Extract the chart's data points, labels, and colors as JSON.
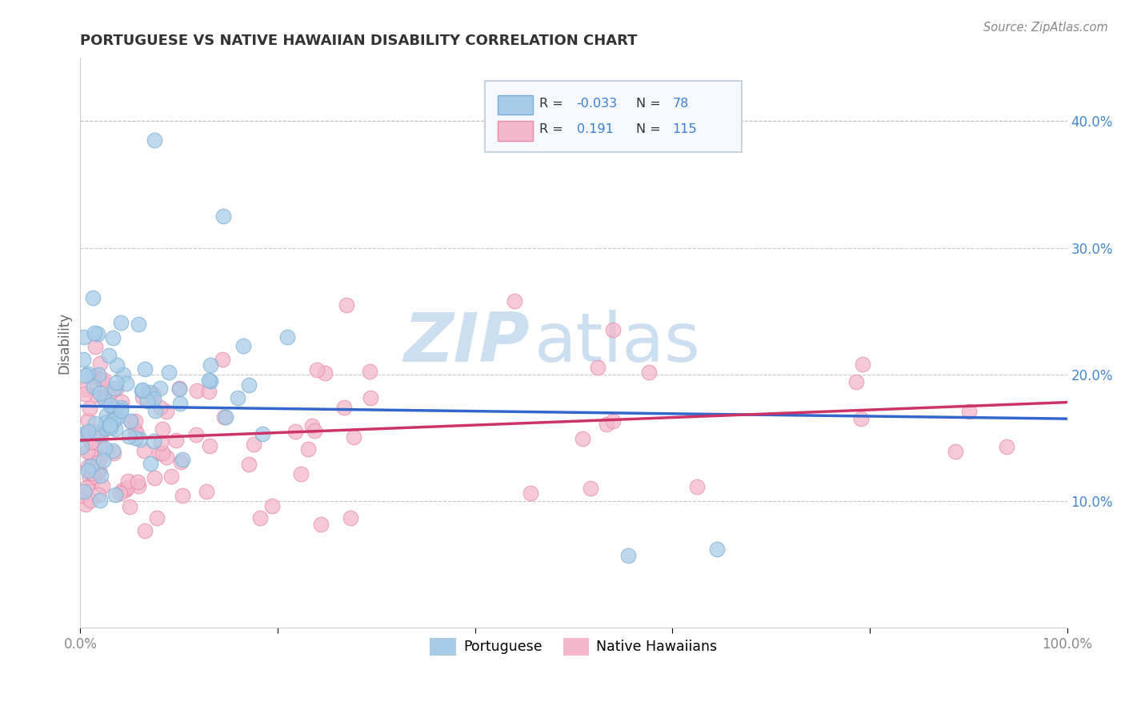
{
  "title": "PORTUGUESE VS NATIVE HAWAIIAN DISABILITY CORRELATION CHART",
  "source": "Source: ZipAtlas.com",
  "ylabel": "Disability",
  "xlim": [
    0,
    1.0
  ],
  "ylim": [
    0.0,
    0.45
  ],
  "xtick_vals": [
    0.0,
    0.2,
    0.4,
    0.6,
    0.8,
    1.0
  ],
  "xticklabels": [
    "0.0%",
    "",
    "",
    "",
    "",
    "100.0%"
  ],
  "ytick_vals": [
    0.0,
    0.1,
    0.2,
    0.3,
    0.4
  ],
  "yticklabels": [
    "",
    "10.0%",
    "20.0%",
    "30.0%",
    "40.0%"
  ],
  "portuguese_color": "#a8cce8",
  "native_hawaiian_color": "#f4b8cc",
  "portuguese_edge": "#7aafd4",
  "native_hawaiian_edge": "#e88aaa",
  "trend_portuguese_color": "#3366cc",
  "trend_native_hawaiian_color": "#cc3366",
  "R_portuguese": -0.033,
  "N_portuguese": 78,
  "R_native_hawaiian": 0.191,
  "N_native_hawaiian": 115,
  "watermark_zip": "ZIP",
  "watermark_atlas": "atlas",
  "watermark_color": "#ccdff0",
  "legend_label_color": "#333333",
  "legend_value_color": "#3a7fd5",
  "background_color": "#ffffff",
  "grid_color": "#bbbbbb",
  "ytick_color": "#4488cc",
  "xtick_color": "#888888",
  "title_color": "#333333",
  "source_color": "#888888",
  "ylabel_color": "#666666",
  "trend_port_x0": 0.0,
  "trend_port_x1": 1.0,
  "trend_port_y0": 0.175,
  "trend_port_y1": 0.165,
  "trend_nhaw_x0": 0.0,
  "trend_nhaw_x1": 1.0,
  "trend_nhaw_y0": 0.148,
  "trend_nhaw_y1": 0.178
}
